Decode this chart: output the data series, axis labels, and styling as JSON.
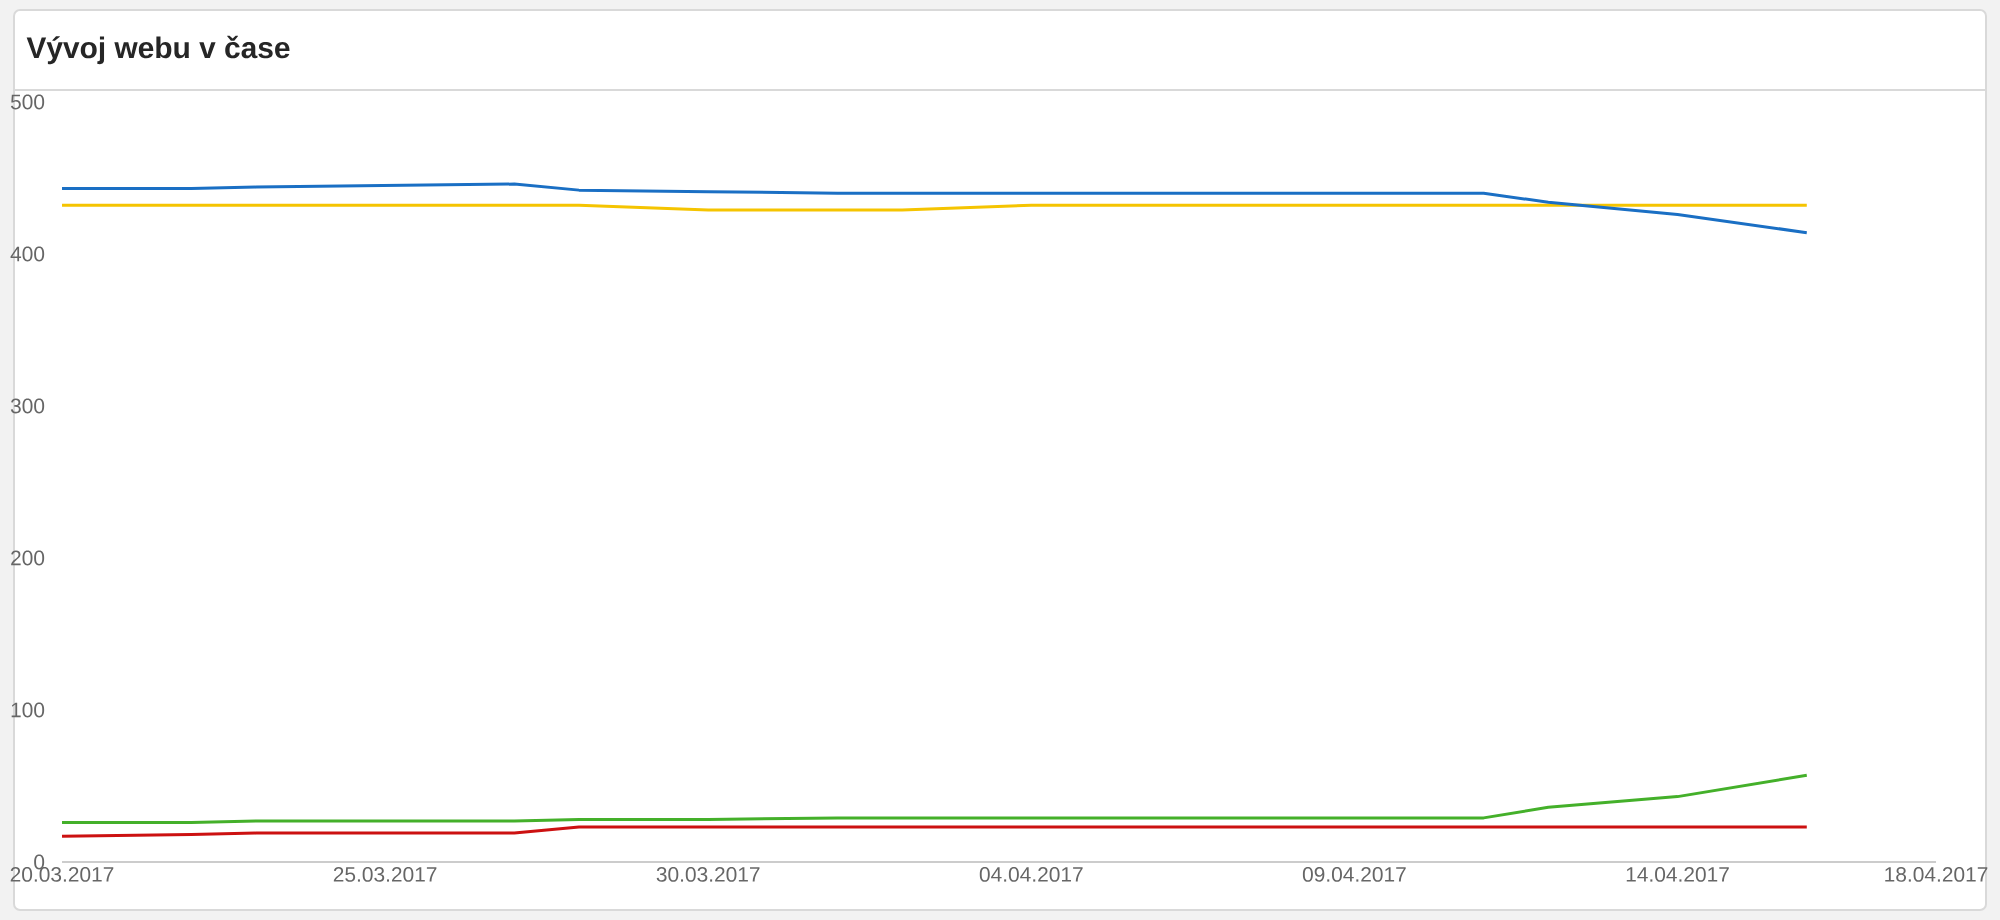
{
  "chart_data": {
    "type": "line",
    "title": "Vývoj webu v čase",
    "x": [
      "2017-03-20",
      "2017-03-22",
      "2017-03-23",
      "2017-03-27",
      "2017-03-28",
      "2017-03-30",
      "2017-04-01",
      "2017-04-02",
      "2017-04-04",
      "2017-04-11",
      "2017-04-12",
      "2017-04-14",
      "2017-04-16"
    ],
    "series": [
      {
        "color": "#f5c400",
        "values": [
          432,
          432,
          432,
          432,
          432,
          429,
          429,
          429,
          432,
          432,
          432,
          432,
          432
        ]
      },
      {
        "color": "#cc1111",
        "values": [
          17,
          18,
          19,
          19,
          23,
          23,
          23,
          23,
          23,
          23,
          23,
          23,
          23
        ]
      },
      {
        "color": "#44b02a",
        "values": [
          26,
          26,
          27,
          27,
          28,
          28,
          29,
          29,
          29,
          29,
          36,
          43,
          57
        ]
      },
      {
        "color": "#1a6fc4",
        "values": [
          443,
          443,
          444,
          446,
          442,
          441,
          440,
          440,
          440,
          440,
          434,
          426,
          414
        ]
      }
    ],
    "xlim": [
      "2017-03-20",
      "2017-04-18"
    ],
    "xticks": [
      {
        "value": "2017-03-20",
        "label": "20.03.2017"
      },
      {
        "value": "2017-03-25",
        "label": "25.03.2017"
      },
      {
        "value": "2017-03-30",
        "label": "30.03.2017"
      },
      {
        "value": "2017-04-04",
        "label": "04.04.2017"
      },
      {
        "value": "2017-04-09",
        "label": "09.04.2017"
      },
      {
        "value": "2017-04-14",
        "label": "14.04.2017"
      },
      {
        "value": "2017-04-18",
        "label": "18.04.2017"
      }
    ],
    "ylim": [
      0,
      500
    ],
    "yticks": [
      0,
      100,
      200,
      300,
      400,
      500
    ],
    "marker": "none",
    "line_style": "solid"
  }
}
